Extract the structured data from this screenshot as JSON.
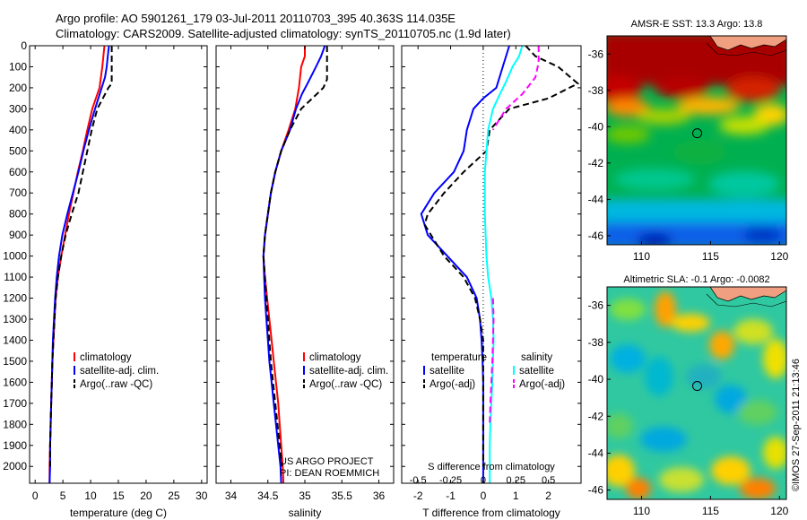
{
  "header": {
    "line1": "Argo profile: AO 5901261_179 03-Jul-2011 20110703_395 40.363S 114.035E",
    "line2": "Climatology: CARS2009. Satellite-adjusted climatology: synTS_20110705.nc (1.9d later)"
  },
  "colors": {
    "climatology": "#ff0000",
    "satellite": "#0000ff",
    "argo": "#000000",
    "salinity_satellite": "#00ffff",
    "salinity_argo": "#ff00ff"
  },
  "chart_data": [
    {
      "type": "line",
      "panel": "temperature",
      "xlabel": "temperature (deg C)",
      "ylabel": "",
      "xlim": [
        -1,
        31
      ],
      "ylim": [
        2080,
        0
      ],
      "xticks": [
        0,
        5,
        10,
        15,
        20,
        25,
        30
      ],
      "yticks": [
        0,
        100,
        200,
        300,
        400,
        500,
        600,
        700,
        800,
        900,
        1000,
        1100,
        1200,
        1300,
        1400,
        1500,
        1600,
        1700,
        1800,
        1900,
        2000
      ],
      "grid": false,
      "legend": "center-right",
      "legend_entries": [
        "climatology",
        "satellite-adj. clim.",
        "Argo(..raw -QC)"
      ],
      "series": [
        {
          "name": "climatology",
          "color": "#ff0000",
          "dash": "",
          "points": [
            [
              12.5,
              0
            ],
            [
              12.3,
              50
            ],
            [
              12.1,
              100
            ],
            [
              11.6,
              200
            ],
            [
              10.3,
              300
            ],
            [
              9.4,
              400
            ],
            [
              8.6,
              500
            ],
            [
              7.7,
              600
            ],
            [
              6.9,
              700
            ],
            [
              6.1,
              800
            ],
            [
              5.4,
              900
            ],
            [
              4.7,
              1000
            ],
            [
              4.1,
              1100
            ],
            [
              3.7,
              1200
            ],
            [
              3.5,
              1300
            ],
            [
              3.3,
              1400
            ],
            [
              3.1,
              1500
            ],
            [
              3.0,
              1600
            ],
            [
              2.9,
              1700
            ],
            [
              2.8,
              1800
            ],
            [
              2.7,
              1900
            ],
            [
              2.6,
              2000
            ],
            [
              2.6,
              2080
            ]
          ]
        },
        {
          "name": "satellite-adj. clim.",
          "color": "#0000ff",
          "dash": "",
          "points": [
            [
              13.3,
              0
            ],
            [
              13.1,
              50
            ],
            [
              12.9,
              100
            ],
            [
              12.6,
              150
            ],
            [
              12.0,
              200
            ],
            [
              10.8,
              300
            ],
            [
              9.7,
              400
            ],
            [
              8.7,
              500
            ],
            [
              7.8,
              600
            ],
            [
              6.8,
              700
            ],
            [
              5.8,
              800
            ],
            [
              4.9,
              900
            ],
            [
              4.3,
              1000
            ],
            [
              3.9,
              1100
            ],
            [
              3.6,
              1200
            ],
            [
              3.4,
              1300
            ],
            [
              3.2,
              1400
            ],
            [
              3.1,
              1500
            ],
            [
              3.0,
              1600
            ],
            [
              2.9,
              1700
            ],
            [
              2.8,
              1800
            ],
            [
              2.7,
              1900
            ],
            [
              2.7,
              2000
            ],
            [
              2.6,
              2080
            ]
          ]
        },
        {
          "name": "Argo(..raw -QC)",
          "color": "#000000",
          "dash": "7,4",
          "points": [
            [
              13.8,
              0
            ],
            [
              13.8,
              100
            ],
            [
              13.8,
              150
            ],
            [
              13.8,
              180
            ],
            [
              13.2,
              200
            ],
            [
              12.2,
              250
            ],
            [
              11.2,
              300
            ],
            [
              10.2,
              400
            ],
            [
              9.4,
              500
            ],
            [
              8.6,
              600
            ],
            [
              7.8,
              700
            ],
            [
              6.6,
              800
            ],
            [
              5.5,
              900
            ],
            [
              4.7,
              1000
            ],
            [
              4.1,
              1100
            ],
            [
              3.7,
              1200
            ],
            [
              3.5,
              1300
            ],
            [
              3.3,
              1400
            ],
            [
              3.1,
              1500
            ],
            [
              3.0,
              1600
            ],
            [
              2.9,
              1700
            ],
            [
              2.8,
              1800
            ],
            [
              2.7,
              1900
            ],
            [
              2.7,
              2000
            ]
          ]
        }
      ]
    },
    {
      "type": "line",
      "panel": "salinity",
      "xlabel": "salinity",
      "xlim": [
        33.8,
        36.2
      ],
      "ylim": [
        2080,
        0
      ],
      "xticks": [
        34,
        34.5,
        35,
        35.5,
        36
      ],
      "grid": false,
      "legend": "center-right",
      "legend_entries": [
        "climatology",
        "satellite-adj. clim.",
        "Argo(..raw -QC)"
      ],
      "annotation": [
        "US ARGO PROJECT",
        "PI: DEAN ROEMMICH"
      ],
      "series": [
        {
          "name": "climatology",
          "color": "#ff0000",
          "dash": "",
          "points": [
            [
              35.0,
              0
            ],
            [
              35.0,
              50
            ],
            [
              34.95,
              100
            ],
            [
              34.92,
              200
            ],
            [
              34.87,
              300
            ],
            [
              34.78,
              400
            ],
            [
              34.68,
              500
            ],
            [
              34.6,
              600
            ],
            [
              34.54,
              700
            ],
            [
              34.5,
              800
            ],
            [
              34.46,
              900
            ],
            [
              34.44,
              1000
            ],
            [
              34.46,
              1100
            ],
            [
              34.49,
              1200
            ],
            [
              34.52,
              1300
            ],
            [
              34.55,
              1400
            ],
            [
              34.58,
              1500
            ],
            [
              34.61,
              1600
            ],
            [
              34.64,
              1700
            ],
            [
              34.66,
              1800
            ],
            [
              34.68,
              1900
            ],
            [
              34.7,
              2000
            ],
            [
              34.71,
              2080
            ]
          ]
        },
        {
          "name": "satellite-adj. clim.",
          "color": "#0000ff",
          "dash": "",
          "points": [
            [
              35.27,
              0
            ],
            [
              35.22,
              50
            ],
            [
              35.15,
              100
            ],
            [
              35.05,
              170
            ],
            [
              34.96,
              230
            ],
            [
              34.88,
              300
            ],
            [
              34.8,
              400
            ],
            [
              34.68,
              500
            ],
            [
              34.6,
              600
            ],
            [
              34.54,
              700
            ],
            [
              34.5,
              800
            ],
            [
              34.46,
              900
            ],
            [
              34.44,
              1000
            ],
            [
              34.45,
              1100
            ],
            [
              34.46,
              1200
            ],
            [
              34.48,
              1300
            ],
            [
              34.5,
              1400
            ],
            [
              34.52,
              1500
            ],
            [
              34.55,
              1600
            ],
            [
              34.58,
              1700
            ],
            [
              34.61,
              1800
            ],
            [
              34.64,
              1900
            ],
            [
              34.67,
              2000
            ],
            [
              34.68,
              2080
            ]
          ]
        },
        {
          "name": "Argo(..raw -QC)",
          "color": "#000000",
          "dash": "7,4",
          "points": [
            [
              35.3,
              0
            ],
            [
              35.3,
              100
            ],
            [
              35.3,
              160
            ],
            [
              35.25,
              200
            ],
            [
              35.1,
              250
            ],
            [
              34.95,
              300
            ],
            [
              34.8,
              400
            ],
            [
              34.68,
              500
            ],
            [
              34.6,
              600
            ],
            [
              34.54,
              700
            ],
            [
              34.5,
              800
            ],
            [
              34.46,
              900
            ],
            [
              34.44,
              1000
            ],
            [
              34.46,
              1100
            ],
            [
              34.48,
              1200
            ],
            [
              34.5,
              1300
            ],
            [
              34.52,
              1400
            ],
            [
              34.54,
              1500
            ],
            [
              34.57,
              1600
            ],
            [
              34.6,
              1700
            ],
            [
              34.63,
              1800
            ],
            [
              34.66,
              1900
            ],
            [
              34.69,
              2000
            ]
          ]
        }
      ]
    },
    {
      "type": "line",
      "panel": "difference",
      "xlabel": "T difference from climatology",
      "xlabel_top": "S difference from climatology",
      "xlim": [
        -2.5,
        3
      ],
      "ylim": [
        2080,
        0
      ],
      "xticks": [
        -2,
        -1,
        0,
        1,
        2
      ],
      "s_ticks": [
        "-0.5",
        "-0.25",
        "0",
        "0.25",
        "0.5"
      ],
      "s_scale": 4,
      "zero_line": "dotted",
      "legend": "bottom",
      "legend_titles": [
        "temperature",
        "salinity"
      ],
      "legend_entries": [
        "satellite",
        "Argo(-adj)",
        "satellite",
        "Argo(-adj)"
      ],
      "series": [
        {
          "name": "satellite",
          "color": "#0000ff",
          "dash": "",
          "points": [
            [
              0.8,
              0
            ],
            [
              0.6,
              100
            ],
            [
              0.4,
              200
            ],
            [
              0.0,
              250
            ],
            [
              -0.3,
              300
            ],
            [
              -0.5,
              400
            ],
            [
              -0.6,
              500
            ],
            [
              -0.9,
              600
            ],
            [
              -1.5,
              700
            ],
            [
              -1.9,
              800
            ],
            [
              -1.7,
              900
            ],
            [
              -1.1,
              1000
            ],
            [
              -0.5,
              1100
            ],
            [
              -0.2,
              1200
            ],
            [
              -0.1,
              1300
            ],
            [
              -0.05,
              1400
            ],
            [
              -0.02,
              1500
            ],
            [
              0.0,
              1600
            ],
            [
              0.0,
              1700
            ],
            [
              0.0,
              1800
            ],
            [
              0.0,
              1900
            ],
            [
              0.0,
              2000
            ],
            [
              0.0,
              2080
            ]
          ]
        },
        {
          "name": "Argo(-adj)",
          "color": "#000000",
          "dash": "7,4",
          "points": [
            [
              1.3,
              0
            ],
            [
              1.6,
              50
            ],
            [
              2.3,
              100
            ],
            [
              2.9,
              180
            ],
            [
              2.0,
              250
            ],
            [
              0.8,
              300
            ],
            [
              0.2,
              400
            ],
            [
              0.1,
              500
            ],
            [
              -0.6,
              600
            ],
            [
              -1.2,
              700
            ],
            [
              -1.7,
              800
            ],
            [
              -1.8,
              850
            ],
            [
              -1.6,
              900
            ],
            [
              -1.2,
              1000
            ],
            [
              -0.6,
              1100
            ],
            [
              -0.25,
              1200
            ],
            [
              -0.1,
              1300
            ],
            [
              0.0,
              1400
            ],
            [
              0.0,
              1500
            ],
            [
              0.0,
              1600
            ],
            [
              0.0,
              1700
            ],
            [
              0.0,
              1800
            ],
            [
              0.0,
              1900
            ],
            [
              0.0,
              2000
            ]
          ]
        },
        {
          "name": "satellite",
          "color": "#00ffff",
          "dash": "",
          "points": [
            [
              1.2,
              0
            ],
            [
              1.1,
              50
            ],
            [
              0.9,
              100
            ],
            [
              0.7,
              170
            ],
            [
              0.45,
              250
            ],
            [
              0.3,
              300
            ],
            [
              0.15,
              400
            ],
            [
              0.05,
              600
            ],
            [
              0.05,
              800
            ],
            [
              0.1,
              1000
            ],
            [
              0.15,
              1100
            ],
            [
              0.25,
              1200
            ],
            [
              0.3,
              1300
            ],
            [
              0.32,
              1400
            ],
            [
              0.3,
              1500
            ],
            [
              0.28,
              1600
            ],
            [
              0.25,
              1700
            ],
            [
              0.22,
              1800
            ],
            [
              0.2,
              1900
            ],
            [
              0.2,
              2000
            ],
            [
              0.2,
              2080
            ]
          ]
        },
        {
          "name": "Argo(-adj)",
          "color": "#ff00ff",
          "dash": "7,4",
          "points": [
            [
              1.7,
              0
            ],
            [
              1.7,
              80
            ],
            [
              1.6,
              150
            ],
            [
              1.2,
              230
            ],
            [
              0.7,
              300
            ],
            [
              0.5,
              350
            ],
            [
              0.3,
              400
            ]
          ],
          "points2": [
            [
              0.3,
              1200
            ],
            [
              0.32,
              1300
            ],
            [
              0.3,
              1400
            ],
            [
              0.28,
              1500
            ],
            [
              0.25,
              1600
            ],
            [
              0.22,
              1700
            ],
            [
              0.2,
              1800
            ]
          ]
        }
      ]
    },
    {
      "type": "heatmap",
      "panel": "sst-map",
      "title": "AMSR-E SST: 13.3 Argo: 13.8",
      "xlim": [
        107.5,
        120.5
      ],
      "ylim": [
        -46.5,
        -35
      ],
      "xticks": [
        110,
        115,
        120
      ],
      "yticks": [
        -36,
        -38,
        -40,
        -42,
        -44,
        -46
      ],
      "marker": {
        "lon": 114.035,
        "lat": -40.363
      }
    },
    {
      "type": "heatmap",
      "panel": "sla-map",
      "title": "Altimetric SLA: -0.1 Argo: -0.0082",
      "xlim": [
        107.5,
        120.5
      ],
      "ylim": [
        -46.5,
        -35
      ],
      "xticks": [
        110,
        115,
        120
      ],
      "yticks": [
        -36,
        -38,
        -40,
        -42,
        -44,
        -46
      ],
      "marker": {
        "lon": 114.035,
        "lat": -40.363
      }
    }
  ],
  "credit": "©IMOS 27-Sep-2011 21:13:46"
}
